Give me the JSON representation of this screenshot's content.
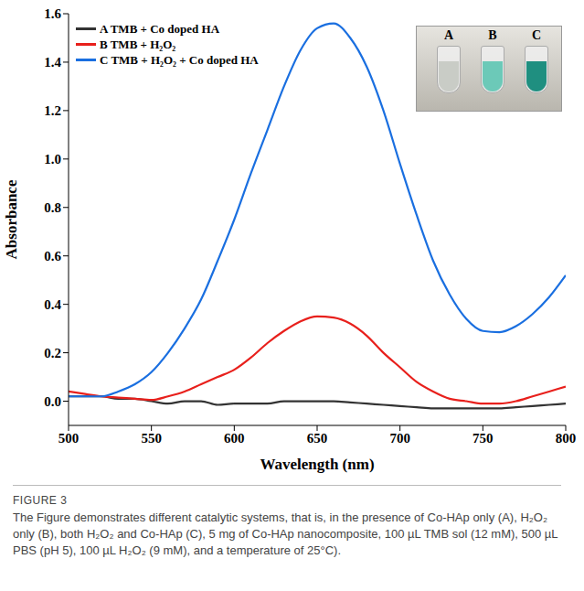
{
  "chart_data": {
    "type": "line",
    "x_label": "Wavelength (nm)",
    "y_label": "Absorbance",
    "x": [
      500,
      510,
      520,
      530,
      540,
      550,
      560,
      570,
      580,
      590,
      600,
      610,
      620,
      630,
      640,
      650,
      660,
      670,
      680,
      690,
      700,
      710,
      720,
      730,
      740,
      750,
      760,
      770,
      780,
      790,
      800
    ],
    "series": [
      {
        "name": "A TMB + Co doped HA",
        "color": "#333333",
        "values": [
          0.02,
          0.02,
          0.02,
          0.01,
          0.01,
          0,
          -0.01,
          0,
          0,
          -0.015,
          -0.01,
          -0.01,
          -0.01,
          0,
          0,
          0,
          0,
          -0.005,
          -0.01,
          -0.015,
          -0.02,
          -0.025,
          -0.03,
          -0.03,
          -0.03,
          -0.03,
          -0.03,
          -0.025,
          -0.02,
          -0.015,
          -0.01
        ]
      },
      {
        "name": "B TMB + H₂O₂",
        "color": "#e8201c",
        "values": [
          0.04,
          0.03,
          0.02,
          0.015,
          0.01,
          0.005,
          0.02,
          0.04,
          0.07,
          0.1,
          0.13,
          0.18,
          0.24,
          0.29,
          0.33,
          0.35,
          0.345,
          0.32,
          0.27,
          0.2,
          0.14,
          0.08,
          0.04,
          0.01,
          0,
          -0.01,
          -0.01,
          0,
          0.02,
          0.04,
          0.06
        ]
      },
      {
        "name": "C TMB + H₂O₂ + Co doped HA",
        "color": "#1a6fe0",
        "values": [
          0.02,
          0.02,
          0.02,
          0.04,
          0.07,
          0.12,
          0.2,
          0.3,
          0.42,
          0.58,
          0.75,
          0.94,
          1.12,
          1.3,
          1.45,
          1.54,
          1.56,
          1.5,
          1.38,
          1.2,
          0.98,
          0.77,
          0.58,
          0.44,
          0.34,
          0.29,
          0.285,
          0.31,
          0.36,
          0.43,
          0.52
        ]
      }
    ],
    "xlim": [
      500,
      800
    ],
    "xticks": [
      500,
      550,
      600,
      650,
      700,
      750,
      800
    ],
    "ylim": [
      -0.1,
      1.6
    ],
    "yticks": [
      {
        "value": 0,
        "label": "0.0"
      },
      {
        "value": 0.2,
        "label": "0.2"
      },
      {
        "value": 0.4,
        "label": "0.4"
      },
      {
        "value": 0.6,
        "label": "0.6"
      },
      {
        "value": 0.8,
        "label": "0.8"
      },
      {
        "value": 1,
        "label": "1.0"
      },
      {
        "value": 1.2,
        "label": "1.2"
      },
      {
        "value": 1.4,
        "label": "1.4"
      },
      {
        "value": 1.6,
        "label": "1.6"
      }
    ],
    "legend": "upper left",
    "grid": false,
    "inset_labels": [
      "A",
      "B",
      "C"
    ]
  },
  "caption": {
    "label": "FIGURE 3",
    "text": "The Figure demonstrates different catalytic systems, that is, in the presence of Co-HAp only (A), H₂O₂ only (B), both H₂O₂ and Co-HAp (C), 5 mg of Co-HAp nanocomposite, 100 µL TMB sol (12 mM), 500 µL PBS (pH 5), 100 µL H₂O₂ (9 mM), and a temperature of 25°C)."
  }
}
